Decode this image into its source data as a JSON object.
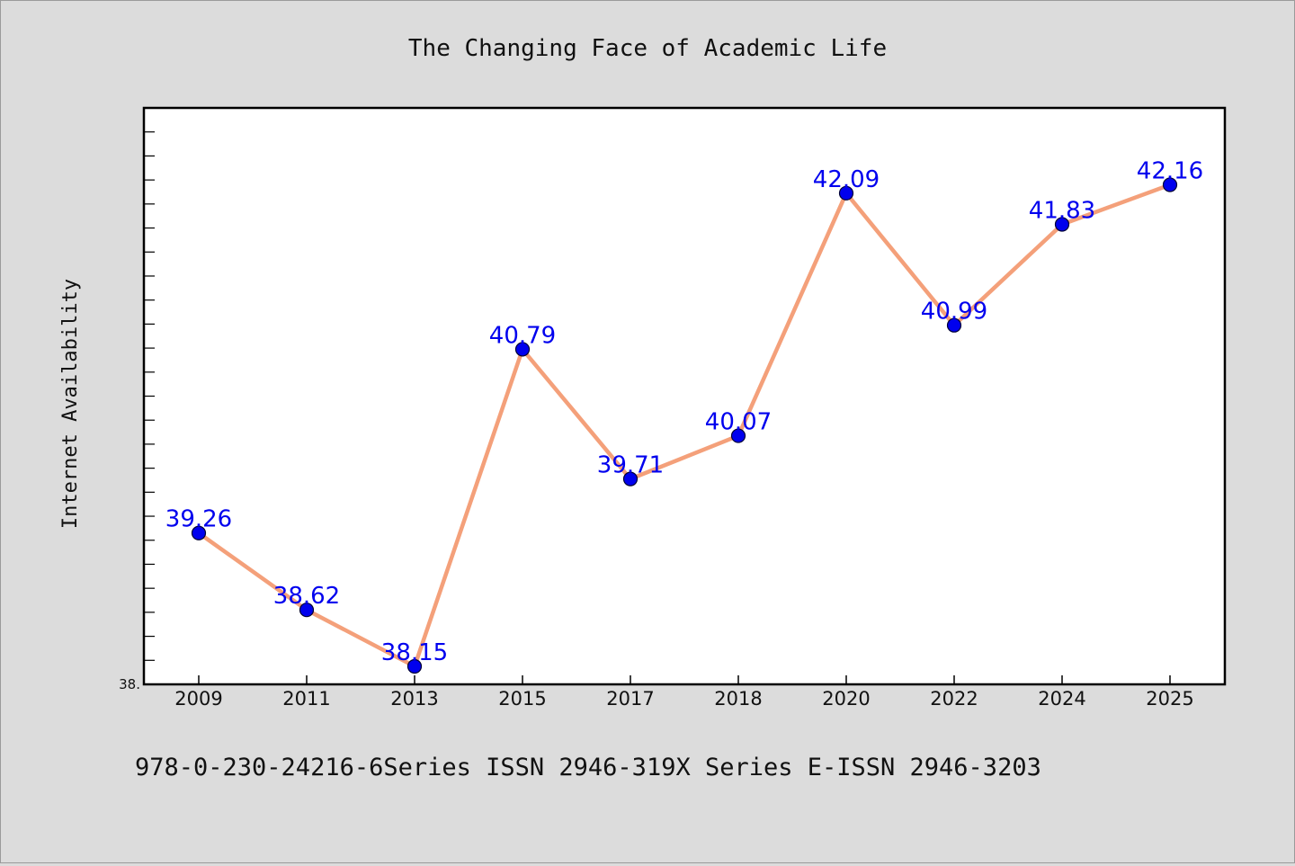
{
  "chart_data": {
    "type": "line",
    "title": "The Changing Face of Academic Life",
    "xlabel": "",
    "ylabel": "Internet Availability",
    "categories": [
      "2009",
      "2011",
      "2013",
      "2015",
      "2017",
      "2018",
      "2020",
      "2022",
      "2024",
      "2025"
    ],
    "series": [
      {
        "values": [
          39.26,
          38.62,
          38.15,
          40.79,
          39.71,
          40.07,
          42.09,
          40.99,
          41.83,
          42.16
        ],
        "labels": [
          "39.26",
          "38.62",
          "38.15",
          "40.79",
          "39.71",
          "40.07",
          "42.09",
          "40.99",
          "41.83",
          "42.16"
        ]
      }
    ],
    "ylim": [
      38.0,
      42.8
    ],
    "yticks": [
      {
        "value": 38.0,
        "label": "38."
      }
    ],
    "y_minor_step": 0.2,
    "grid": false,
    "colors": {
      "line": "#f4a07a",
      "marker": "#0000ee",
      "marker_edge": "#000033",
      "data_label": "#0000ee",
      "plot_bg": "#ffffff",
      "figure_bg": "#dcdcdc"
    }
  },
  "footer": {
    "text": "978-0-230-24216-6Series ISSN 2946-319X Series E-ISSN 2946-3203"
  }
}
